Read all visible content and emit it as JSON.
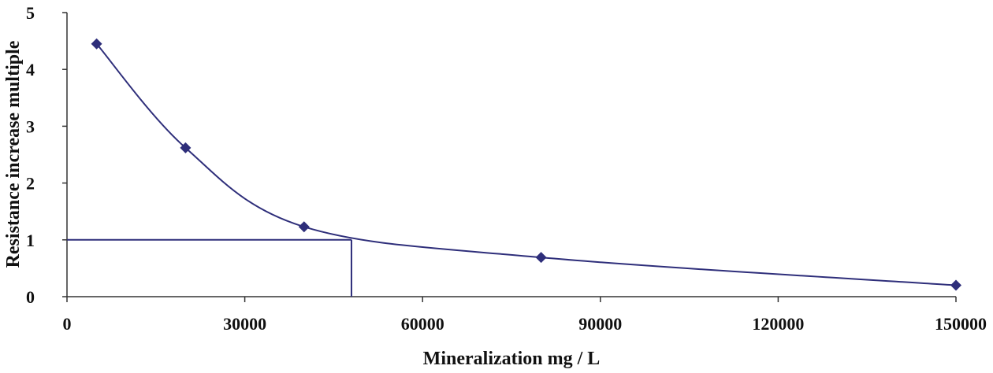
{
  "chart_data": {
    "type": "line",
    "title": "",
    "xlabel": "Mineralization mg / L",
    "ylabel": "Resistance increase multiple",
    "xlim": [
      0,
      150000
    ],
    "ylim": [
      0,
      5
    ],
    "x_ticks": [
      "0",
      "30000",
      "60000",
      "90000",
      "120000",
      "150000"
    ],
    "x_tick_values": [
      0,
      30000,
      60000,
      90000,
      120000,
      150000
    ],
    "y_ticks": [
      "0",
      "1",
      "2",
      "3",
      "4",
      "5"
    ],
    "y_tick_values": [
      0,
      1,
      2,
      3,
      4,
      5
    ],
    "grid": false,
    "series": [
      {
        "name": "Resistance increase multiple",
        "x": [
          5000,
          20000,
          40000,
          80000,
          150000
        ],
        "y": [
          4.45,
          2.62,
          1.23,
          0.69,
          0.2
        ],
        "marker": "diamond",
        "smooth": true
      }
    ],
    "reference_lines": {
      "y": 1,
      "x": 48000
    },
    "colors": {
      "line": "#2e2e7a",
      "marker": "#2e2e7a",
      "axis": "#333333"
    }
  }
}
